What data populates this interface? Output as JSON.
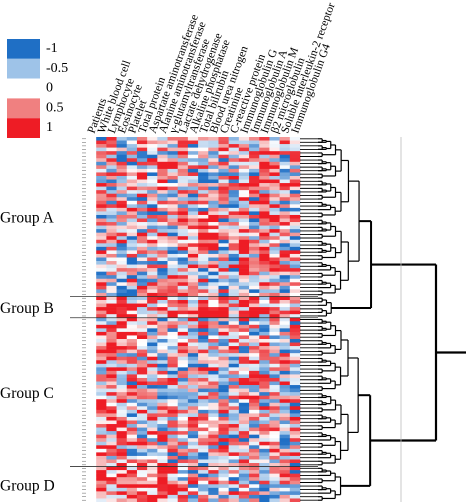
{
  "chart_data": {
    "type": "heatmap",
    "title": "",
    "color_scale": {
      "ticks": [
        "-1",
        "-0.5",
        "0",
        "0.5",
        "1"
      ],
      "values": [
        -1,
        -0.5,
        0,
        0.5,
        1
      ],
      "colors": [
        "#1f6fc5",
        "#9ec3e8",
        "#ffffff",
        "#f08080",
        "#ee1c25"
      ]
    },
    "columns": [
      "Patients",
      "White blood cell",
      "Lymphocyte",
      "Eosinocyte",
      "Platelet",
      "Total protein",
      "Aspartate aminotransferase",
      "Alanine aminotransferase",
      "γ-glutamyltransferase",
      "Lactate dehydrogenase",
      "Alkaline phosphatase",
      "Total bilirubin",
      "Blood urea nitrogen",
      "Creatinine",
      "C-reactive protein",
      "Immunoglobulin G",
      "Immunoglobulin A",
      "Immunoglobulin M",
      "β2 microglobulin",
      "Soluble interleukin-2 receptor",
      "Immunoglobulin G4"
    ],
    "groups": [
      {
        "name": "Group A",
        "rows": 45
      },
      {
        "name": "Group B",
        "rows": 6
      },
      {
        "name": "Group C",
        "rows": 42
      },
      {
        "name": "Group D",
        "rows": 10
      }
    ],
    "row_count": 103,
    "grid": false,
    "dendrogram": "right"
  }
}
